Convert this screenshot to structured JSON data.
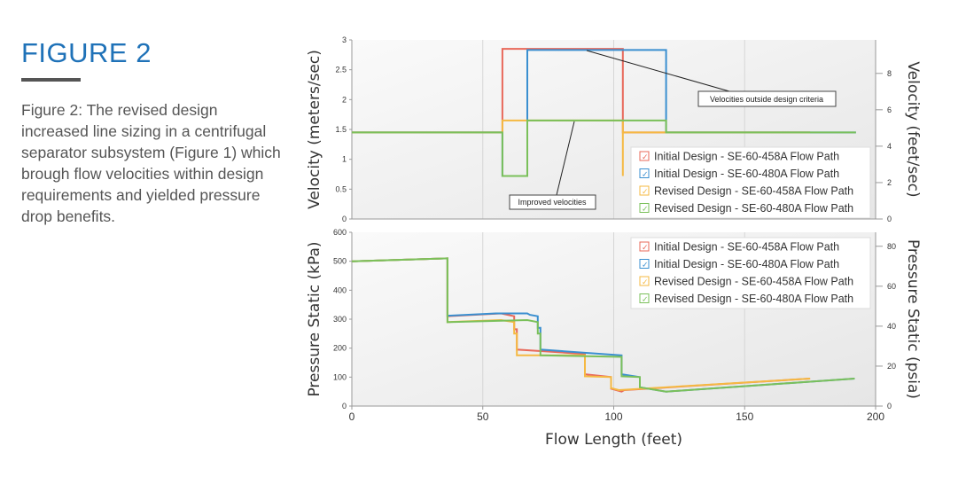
{
  "figure": {
    "title": "FIGURE 2",
    "caption": "Figure 2: The revised design increased line sizing in a centrifugal separator subsystem (Figure 1) which brough flow velocities within design requirements and yielded pressure drop benefits."
  },
  "colors": {
    "red": "#e8685a",
    "blue": "#3a8fd0",
    "orange": "#f5b942",
    "green": "#7ac05a",
    "title": "#1f72b8"
  },
  "chart_data": [
    {
      "type": "line",
      "title": "",
      "xlabel": "",
      "ylabel": "Velocity (meters/sec)",
      "ylabel_right": "Velocity (feet/sec)",
      "xlim": [
        0,
        200
      ],
      "ylim": [
        0,
        3
      ],
      "ylim_right": [
        0,
        9.84
      ],
      "yticks": [
        "0",
        "0.5",
        "1",
        "1.5",
        "2",
        "2.5",
        "3"
      ],
      "yticks_right": [
        "0",
        "2",
        "4",
        "6",
        "8"
      ],
      "grid": true,
      "legend": "bottom-right",
      "annotations": [
        {
          "text": "Velocities outside design criteria",
          "points_to": [
            90,
            2.85
          ]
        },
        {
          "text": "Improved velocities",
          "points_to": [
            85,
            1.65
          ]
        }
      ],
      "series": [
        {
          "name": "Initial Design - SE-60-458A Flow Path",
          "color": "red",
          "points": [
            [
              0,
              1.45
            ],
            [
              57.5,
              1.45
            ],
            [
              57.5,
              2.85
            ],
            [
              103.5,
              2.85
            ],
            [
              103.5,
              1.45
            ],
            [
              175,
              1.45
            ]
          ]
        },
        {
          "name": "Initial Design - SE-60-480A Flow Path",
          "color": "blue",
          "points": [
            [
              0,
              1.45
            ],
            [
              57.5,
              1.45
            ],
            [
              57.5,
              0.72
            ],
            [
              67,
              0.72
            ],
            [
              67,
              2.83
            ],
            [
              120,
              2.83
            ],
            [
              120,
              1.45
            ],
            [
              192.5,
              1.45
            ]
          ]
        },
        {
          "name": "Revised Design - SE-60-458A Flow Path",
          "color": "orange",
          "points": [
            [
              0,
              1.45
            ],
            [
              57.5,
              1.45
            ],
            [
              57.5,
              1.65
            ],
            [
              103.5,
              1.65
            ],
            [
              103.5,
              0.72
            ],
            [
              103.5,
              1.45
            ],
            [
              175,
              1.45
            ]
          ]
        },
        {
          "name": "Revised Design - SE-60-480A Flow Path",
          "color": "green",
          "points": [
            [
              0,
              1.45
            ],
            [
              57.5,
              1.45
            ],
            [
              57.5,
              0.72
            ],
            [
              67,
              0.72
            ],
            [
              67,
              1.65
            ],
            [
              120,
              1.65
            ],
            [
              120,
              1.45
            ],
            [
              192.5,
              1.45
            ]
          ]
        }
      ]
    },
    {
      "type": "line",
      "title": "",
      "xlabel": "Flow Length (feet)",
      "ylabel": "Pressure Static (kPa)",
      "ylabel_right": "Pressure Static (psia)",
      "xlim": [
        0,
        200
      ],
      "ylim": [
        0,
        600
      ],
      "ylim_right": [
        0,
        87
      ],
      "xticks": [
        "0",
        "50",
        "100",
        "150",
        "200"
      ],
      "yticks": [
        "0",
        "100",
        "200",
        "300",
        "400",
        "500",
        "600"
      ],
      "yticks_right": [
        "0",
        "20",
        "40",
        "60",
        "80"
      ],
      "grid": true,
      "legend": "top-right",
      "series": [
        {
          "name": "Initial Design - SE-60-458A Flow Path",
          "color": "red",
          "points": [
            [
              0,
              500
            ],
            [
              36.5,
              510
            ],
            [
              36.5,
              310
            ],
            [
              57,
              320
            ],
            [
              62,
              310
            ],
            [
              62,
              265
            ],
            [
              63,
              265
            ],
            [
              63,
              195
            ],
            [
              89,
              180
            ],
            [
              89,
              110
            ],
            [
              99,
              100
            ],
            [
              99,
              60
            ],
            [
              103,
              50
            ],
            [
              104,
              55
            ],
            [
              175,
              95
            ]
          ]
        },
        {
          "name": "Initial Design - SE-60-480A Flow Path",
          "color": "blue",
          "points": [
            [
              0,
              500
            ],
            [
              36.5,
              510
            ],
            [
              36.5,
              312
            ],
            [
              55,
              320
            ],
            [
              67,
              320
            ],
            [
              68,
              315
            ],
            [
              71,
              310
            ],
            [
              71,
              270
            ],
            [
              72,
              270
            ],
            [
              72,
              195
            ],
            [
              103,
              175
            ],
            [
              103,
              110
            ],
            [
              110,
              100
            ],
            [
              110,
              65
            ],
            [
              120,
              50
            ],
            [
              192,
              95
            ]
          ]
        },
        {
          "name": "Revised Design - SE-60-458A Flow Path",
          "color": "orange",
          "points": [
            [
              0,
              500
            ],
            [
              36.5,
              510
            ],
            [
              36.5,
              290
            ],
            [
              57,
              297
            ],
            [
              62,
              290
            ],
            [
              62,
              250
            ],
            [
              63,
              250
            ],
            [
              63,
              175
            ],
            [
              89,
              175
            ],
            [
              89,
              103
            ],
            [
              99,
              100
            ],
            [
              99,
              62
            ],
            [
              102,
              55
            ],
            [
              175,
              95
            ]
          ]
        },
        {
          "name": "Revised Design - SE-60-480A Flow Path",
          "color": "green",
          "points": [
            [
              0,
              500
            ],
            [
              36.5,
              510
            ],
            [
              36.5,
              290
            ],
            [
              67,
              297
            ],
            [
              71,
              290
            ],
            [
              71,
              250
            ],
            [
              72,
              250
            ],
            [
              72,
              175
            ],
            [
              103,
              170
            ],
            [
              103,
              103
            ],
            [
              110,
              100
            ],
            [
              110,
              65
            ],
            [
              120,
              50
            ],
            [
              192,
              95
            ]
          ]
        }
      ]
    }
  ]
}
